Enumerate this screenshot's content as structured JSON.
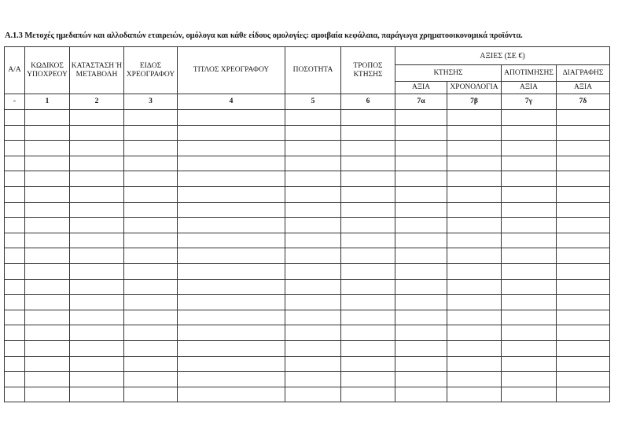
{
  "document": {
    "title": "Α.1.3 Μετοχές ημεδαπών και αλλοδαπών εταιρειών, ομόλογα και κάθε είδους ομολογίες: αμοιβαία κεφάλαια, παράγωγα χρηματοοικονομικά προϊόντα.",
    "headers": {
      "aa": "Α/Α",
      "kodikos": "ΚΩΔΙΚΟΣ ΥΠΟΧΡΕΟΥ",
      "katastasi": "ΚΑΤΑΣΤΑΣΗ Ή ΜΕΤΑΒΟΛΗ",
      "eidos": "ΕΙΔΟΣ ΧΡΕΟΓΡΑΦΟΥ",
      "titlos": "ΤΙΤΛΟΣ ΧΡΕΟΓΡΑΦΟΥ",
      "posotita": "ΠΟΣΟΤΗΤΑ",
      "tropos": "ΤΡΟΠΟΣ ΚΤΗΣΗΣ",
      "axies": "ΑΞΙΕΣ (ΣΕ €)",
      "ktisis": "ΚΤΗΣΗΣ",
      "apotimisis": "ΑΠΟΤΙΜΗΣΗΣ",
      "diagrafis": "ΔΙΑΓΡΑΦΗΣ",
      "axia_ktisis": "ΑΞΙΑ",
      "xronologia": "ΧΡΟΝΟΛΟΓΙΑ",
      "axia_apotimisis": "ΑΞΙΑ",
      "axia_diagrafis": "ΑΞΙΑ"
    },
    "column_numbers": [
      "-",
      "1",
      "2",
      "3",
      "4",
      "5",
      "6",
      "7α",
      "7β",
      "7γ",
      "7δ"
    ],
    "empty_rows": 19
  }
}
